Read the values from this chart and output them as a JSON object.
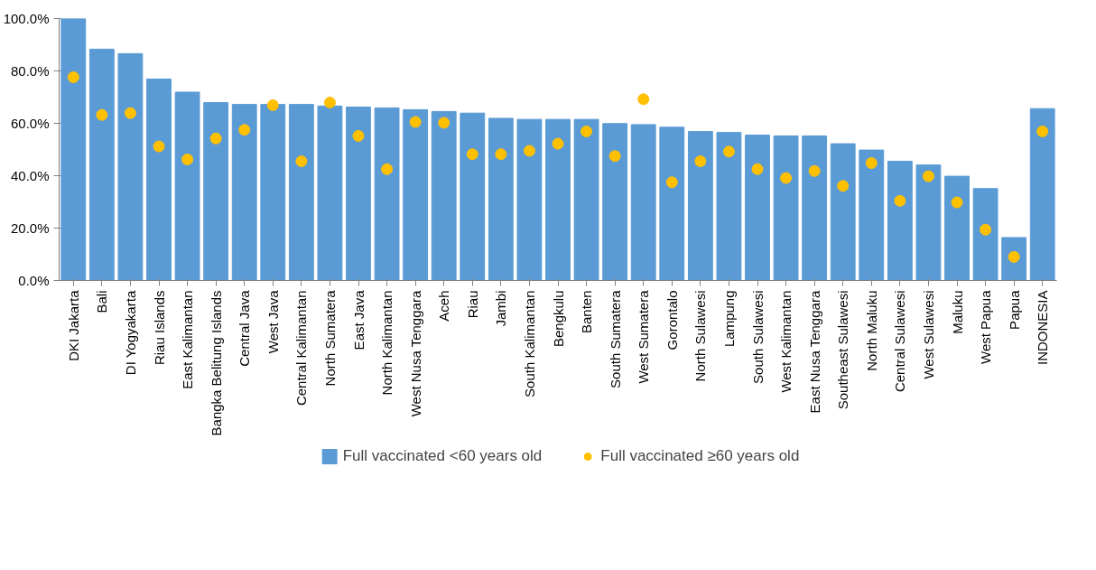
{
  "chart_data": {
    "type": "bar",
    "categories": [
      "DKI Jakarta",
      "Bali",
      "DI Yogyakarta",
      "Riau Islands",
      "East Kalimantan",
      "Bangka Belitung Islands",
      "Central Java",
      "West Java",
      "Central Kalimantan",
      "North Sumatera",
      "East Java",
      "North Kalimantan",
      "West Nusa Tenggara",
      "Aceh",
      "Riau",
      "Jambi",
      "South Kalimantan",
      "Bengkulu",
      "Banten",
      "South Sumatera",
      "West Sumatera",
      "Gorontalo",
      "North Sulawesi",
      "Lampung",
      "South Sulawesi",
      "West Kalimantan",
      "East Nusa Tenggara",
      "Southeast Sulawesi",
      "North Maluku",
      "Central Sulawesi",
      "West Sulawesi",
      "Maluku",
      "West Papua",
      "Papua",
      "INDONESIA"
    ],
    "series": [
      {
        "name": "Full vaccinated <60 years old",
        "color": "#5b9bd5",
        "values": [
          100.0,
          88.3,
          86.6,
          76.9,
          71.9,
          67.9,
          67.2,
          67.2,
          67.2,
          66.6,
          66.2,
          65.9,
          65.2,
          64.5,
          63.9,
          61.9,
          61.5,
          61.5,
          61.5,
          59.9,
          59.5,
          58.5,
          56.9,
          56.5,
          55.5,
          55.2,
          55.2,
          52.2,
          49.8,
          45.5,
          44.1,
          39.8,
          35.1,
          16.4,
          65.6
        ]
      },
      {
        "name": "Full vaccinated ≥60 years old",
        "type": "scatter",
        "color": "#ffc000",
        "marker": "circle",
        "values": [
          77.6,
          63.2,
          63.9,
          51.2,
          46.2,
          54.2,
          57.5,
          66.9,
          45.5,
          67.9,
          55.2,
          42.5,
          60.5,
          60.2,
          48.2,
          48.2,
          49.5,
          52.2,
          56.9,
          47.5,
          69.2,
          37.5,
          45.5,
          49.2,
          42.5,
          39.1,
          41.8,
          36.1,
          44.8,
          30.4,
          39.8,
          29.8,
          19.4,
          9.0,
          56.9
        ]
      }
    ],
    "ylim": [
      0,
      100
    ],
    "yticks": [
      {
        "value": 0,
        "label": "0.0%"
      },
      {
        "value": 20,
        "label": "20.0%"
      },
      {
        "value": 40,
        "label": "40.0%"
      },
      {
        "value": 60,
        "label": "60.0%"
      },
      {
        "value": 80,
        "label": "80.0%"
      },
      {
        "value": 100,
        "label": "100.0%"
      }
    ],
    "grid": false,
    "legend": "bottom"
  }
}
